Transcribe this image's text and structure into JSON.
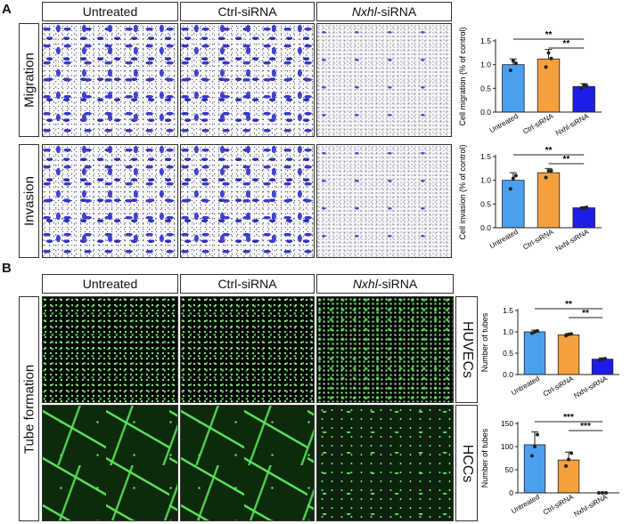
{
  "panels": {
    "A": {
      "letter": "A",
      "columns": [
        "Untreated",
        "Ctrl-siRNA",
        "-siRNA"
      ],
      "column_italic_prefix": "Nxhl",
      "rows": [
        "Migration",
        "Invasion"
      ]
    },
    "B": {
      "letter": "B",
      "columns": [
        "Untreated",
        "Ctrl-siRNA",
        "-siRNA"
      ],
      "column_italic_prefix": "Nxhl",
      "row_label": "Tube formation",
      "side_labels": [
        "HUVECs",
        "HCCs"
      ]
    }
  },
  "colors": {
    "untreated": "#4aa0ef",
    "ctrl": "#f5a03c",
    "nxhl": "#1d1de8"
  },
  "chart_data": [
    {
      "type": "bar",
      "categories": [
        "Untreated",
        "Ctrl-siRNA",
        "Nxhl-siRNA"
      ],
      "values": [
        1.0,
        1.12,
        0.54
      ],
      "errors": [
        0.12,
        0.2,
        0.06
      ],
      "points": [
        [
          0.88,
          1.08,
          1.03
        ],
        [
          0.95,
          1.25,
          1.13
        ],
        [
          0.5,
          0.57,
          0.55
        ]
      ],
      "ylabel": "Cell migration (% of control)",
      "ylim": [
        0,
        1.5
      ],
      "yticks": [
        "0.0",
        "0.5",
        "1.0",
        "1.5"
      ],
      "significance": [
        {
          "label": "**",
          "from": 0,
          "to": 2
        },
        {
          "label": "**",
          "from": 1,
          "to": 2
        }
      ]
    },
    {
      "type": "bar",
      "categories": [
        "Untreated",
        "Ctrl-siRNA",
        "Nxhl-siRNA"
      ],
      "values": [
        1.0,
        1.16,
        0.42
      ],
      "errors": [
        0.16,
        0.09,
        0.02
      ],
      "points": [
        [
          0.82,
          1.04,
          1.1
        ],
        [
          1.06,
          1.2,
          1.2
        ],
        [
          0.41,
          0.42,
          0.43
        ]
      ],
      "ylabel": "Cell invasion (% of control)",
      "ylim": [
        0,
        1.5
      ],
      "yticks": [
        "0.0",
        "0.5",
        "1.0",
        "1.5"
      ],
      "significance": [
        {
          "label": "**",
          "from": 0,
          "to": 2
        },
        {
          "label": "**",
          "from": 1,
          "to": 2
        }
      ]
    },
    {
      "type": "bar",
      "categories": [
        "Untreated",
        "Ctrl-siRNA",
        "NxhI-siRNA"
      ],
      "values": [
        1.0,
        0.93,
        0.36
      ],
      "errors": [
        0.04,
        0.03,
        0.03
      ],
      "points": [
        [
          0.97,
          1.0,
          1.02
        ],
        [
          0.91,
          0.94,
          0.95
        ],
        [
          0.34,
          0.36,
          0.37
        ]
      ],
      "ylabel": "Number of tubes",
      "ylim": [
        0,
        1.5
      ],
      "yticks": [
        "0.0",
        "0.5",
        "1.0",
        "1.5"
      ],
      "significance": [
        {
          "label": "**",
          "from": 0,
          "to": 2
        },
        {
          "label": "**",
          "from": 1,
          "to": 2
        }
      ]
    },
    {
      "type": "bar",
      "categories": [
        "Untreated",
        "Ctrl-siRNA",
        "NxhI-siRNA"
      ],
      "values": [
        104,
        71,
        0
      ],
      "errors": [
        28,
        17,
        0
      ],
      "points": [
        [
          80,
          100,
          126
        ],
        [
          58,
          72,
          86
        ],
        [
          0,
          0,
          0
        ]
      ],
      "ylabel": "Number of tubes",
      "ylim": [
        0,
        150
      ],
      "yticks": [
        "0",
        "50",
        "100",
        "150"
      ],
      "significance": [
        {
          "label": "***",
          "from": 0,
          "to": 2
        },
        {
          "label": "***",
          "from": 1,
          "to": 2
        }
      ]
    }
  ]
}
